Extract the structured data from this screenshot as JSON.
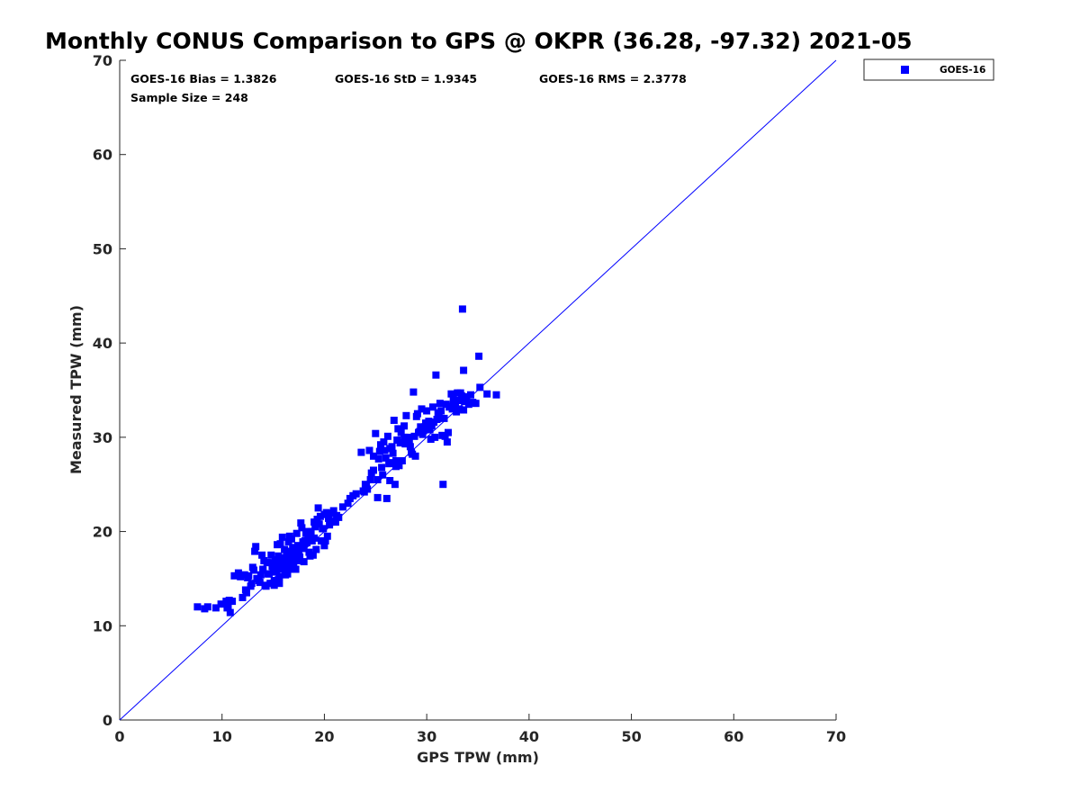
{
  "chart_data": {
    "type": "scatter",
    "title": "Monthly CONUS Comparison to GPS @ OKPR (36.28, -97.32) 2021-05",
    "xlabel": "GPS TPW (mm)",
    "ylabel": "Measured TPW (mm)",
    "xlim": [
      0,
      70
    ],
    "ylim": [
      0,
      70
    ],
    "xticks": [
      "0",
      "10",
      "20",
      "30",
      "40",
      "50",
      "60",
      "70"
    ],
    "yticks": [
      "0",
      "10",
      "20",
      "30",
      "40",
      "50",
      "60",
      "70"
    ],
    "grid": false,
    "legend_position": "outside-top-right",
    "legend": [
      "GOES-16"
    ],
    "stats": {
      "bias": "GOES-16 Bias = 1.3826",
      "std": "GOES-16 StD = 1.9345",
      "rms": "GOES-16 RMS = 2.3778",
      "sample": "Sample Size = 248"
    },
    "reference_line": {
      "x": [
        0,
        70
      ],
      "y": [
        0,
        70
      ],
      "color": "#0000ff"
    },
    "series": [
      {
        "name": "GOES-16",
        "color": "#0000ff",
        "marker": "square",
        "x": [
          7.6,
          8.3,
          8.6,
          9.4,
          9.9,
          10.4,
          10.6,
          10.8,
          10.7,
          10.5,
          11.2,
          11.6,
          12.0,
          12.3,
          12.5,
          12.8,
          13.0,
          13.2,
          13.3,
          13.4,
          13.6,
          13.8,
          14.0,
          14.2,
          14.4,
          14.5,
          14.7,
          14.8,
          15.0,
          15.1,
          15.3,
          15.4,
          15.5,
          15.6,
          15.8,
          15.9,
          16.0,
          16.1,
          16.2,
          16.3,
          16.4,
          16.5,
          16.6,
          16.7,
          16.8,
          16.9,
          17.0,
          17.1,
          17.2,
          17.3,
          17.4,
          17.5,
          17.6,
          17.8,
          18.0,
          18.2,
          18.4,
          18.6,
          18.8,
          19.0,
          19.2,
          19.4,
          19.6,
          19.8,
          20.0,
          20.2,
          20.4,
          20.6,
          20.9,
          21.0,
          21.8,
          22.5,
          23.6,
          23.9,
          24.1,
          24.4,
          24.8,
          25.0,
          25.2,
          25.4,
          25.6,
          25.8,
          26.0,
          26.2,
          26.4,
          26.6,
          26.8,
          27.0,
          27.2,
          27.4,
          27.6,
          27.8,
          28.0,
          28.3,
          28.5,
          28.7,
          29.0,
          29.2,
          29.5,
          29.8,
          30.0,
          30.3,
          30.6,
          30.9,
          31.1,
          31.3,
          31.6,
          31.8,
          32.0,
          32.2,
          32.4,
          32.6,
          32.8,
          33.0,
          33.2,
          33.4,
          33.6,
          33.7,
          33.9,
          34.3,
          34.8,
          35.2,
          35.9,
          36.8,
          31.5,
          30.8,
          33.5,
          35.1,
          28.9,
          26.1,
          25.2,
          13.5,
          14.3,
          15.0,
          15.6,
          16.4,
          17.2,
          18.0,
          18.9,
          19.7,
          20.3,
          21.1,
          12.6,
          14.1,
          15.4,
          16.8,
          18.3,
          19.5,
          24.8,
          26.9,
          28.6,
          30.4,
          32.1,
          27.3,
          25.7,
          29.9,
          22.3,
          23.1,
          24.5,
          26.4,
          27.8,
          29.3,
          31.9,
          33.1,
          34.1,
          12.2,
          13.9,
          15.7,
          16.6,
          17.7,
          19.1,
          20.8,
          14.8,
          16.0,
          17.4,
          18.7,
          11.8,
          13.1,
          14.6,
          15.9,
          17.0,
          18.5,
          20.1,
          25.5,
          27.0,
          28.4,
          30.1,
          31.7,
          32.9,
          26.7,
          28.1,
          29.6,
          30.7,
          24.2,
          25.9,
          27.5,
          29.1,
          32.5,
          33.8,
          15.2,
          16.3,
          17.9,
          19.3,
          20.5,
          14.0,
          15.5,
          16.9,
          18.1,
          19.9,
          21.4,
          23.8,
          26.3,
          28.8,
          30.2,
          31.4,
          32.3,
          33.3,
          22.8,
          24.6,
          27.9,
          29.4,
          31.2,
          12.9,
          14.9,
          16.7,
          18.4,
          20.0,
          13.7,
          15.8,
          17.5,
          19.0,
          21.2,
          24.0,
          25.3,
          27.1,
          28.2,
          30.5,
          32.7,
          34.5,
          26.5,
          29.7,
          31.0,
          33.6,
          10.5,
          11.0,
          12.4,
          15.1,
          16.2
        ],
        "y": [
          12.0,
          11.8,
          12.0,
          11.9,
          12.3,
          12.6,
          12.1,
          11.4,
          12.7,
          12.4,
          15.3,
          15.6,
          13.0,
          13.8,
          15.1,
          14.2,
          16.2,
          17.9,
          18.4,
          15.0,
          14.8,
          15.4,
          15.9,
          14.3,
          16.7,
          15.5,
          14.5,
          17.5,
          16.1,
          14.3,
          15.7,
          18.6,
          16.8,
          14.5,
          17.2,
          19.4,
          16.0,
          18.1,
          15.8,
          17.0,
          16.4,
          18.9,
          17.5,
          16.0,
          19.2,
          17.7,
          16.5,
          18.3,
          17.1,
          19.8,
          16.9,
          18.5,
          17.3,
          20.4,
          18.2,
          19.8,
          20.0,
          17.4,
          19.0,
          21.0,
          18.1,
          22.5,
          21.6,
          20.3,
          21.8,
          22.0,
          21.4,
          21.0,
          22.2,
          21.1,
          22.6,
          23.5,
          28.4,
          24.2,
          24.8,
          28.6,
          28.0,
          30.4,
          25.5,
          28.5,
          26.8,
          29.5,
          27.8,
          30.1,
          25.4,
          29.0,
          31.8,
          26.9,
          30.9,
          29.4,
          27.5,
          31.2,
          32.3,
          29.7,
          28.4,
          34.8,
          32.2,
          30.5,
          33.0,
          31.1,
          32.8,
          30.8,
          33.2,
          36.6,
          32.5,
          33.6,
          25.0,
          30.1,
          29.5,
          33.2,
          34.6,
          34.0,
          33.5,
          34.7,
          33.0,
          34.4,
          37.1,
          33.8,
          34.3,
          34.5,
          33.6,
          35.3,
          34.6,
          34.5,
          30.2,
          30.0,
          43.6,
          38.6,
          28.0,
          23.5,
          23.6,
          15.0,
          14.2,
          14.5,
          15.2,
          15.5,
          16.0,
          16.8,
          17.5,
          19.0,
          19.5,
          21.0,
          15.3,
          16.9,
          16.3,
          17.7,
          18.8,
          20.8,
          26.5,
          25.0,
          28.2,
          29.8,
          30.5,
          27.0,
          26.0,
          31.5,
          23.0,
          24.0,
          25.5,
          28.8,
          30.0,
          30.6,
          33.5,
          33.9,
          33.5,
          15.4,
          17.5,
          18.7,
          19.5,
          20.9,
          20.5,
          21.9,
          16.7,
          17.2,
          18.5,
          20.0,
          15.2,
          15.9,
          15.5,
          16.2,
          17.5,
          17.8,
          19.0,
          29.2,
          27.5,
          29.0,
          31.5,
          32.0,
          32.7,
          28.3,
          29.9,
          30.3,
          31.6,
          24.5,
          28.6,
          30.5,
          32.5,
          33.0,
          34.2,
          17.0,
          17.9,
          18.9,
          21.3,
          20.7,
          16.0,
          17.4,
          18.3,
          19.0,
          20.3,
          21.5,
          24.3,
          27.2,
          30.1,
          31.7,
          32.8,
          33.3,
          34.7,
          23.8,
          26.2,
          29.3,
          31.1,
          32.6,
          14.5,
          16.3,
          16.8,
          19.4,
          18.5,
          14.6,
          16.5,
          17.8,
          19.3,
          21.7,
          25.0,
          27.7,
          29.7,
          30.0,
          31.2,
          33.8,
          33.7,
          27.3,
          30.7,
          31.9,
          32.9,
          11.9,
          12.6,
          13.5,
          14.8,
          15.4
        ]
      }
    ]
  }
}
